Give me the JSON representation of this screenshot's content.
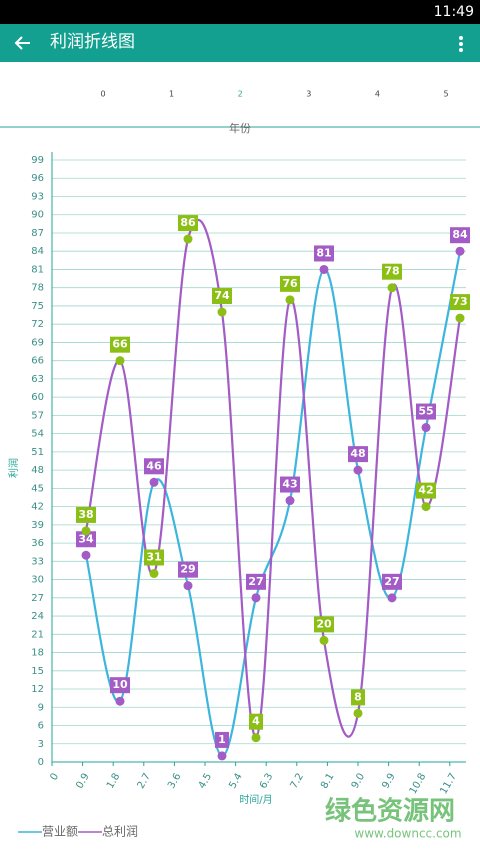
{
  "status_bar": {
    "time": "11:49"
  },
  "app_bar": {
    "title": "利润折线图"
  },
  "chart_data": {
    "type": "line",
    "top_axis": {
      "ticks": [
        0,
        1,
        2,
        3,
        4,
        5
      ],
      "label": "年份"
    },
    "xlabel": "时间/月",
    "ylabel": "利润",
    "x": [
      1,
      2,
      3,
      4,
      5,
      6,
      7,
      8,
      9,
      10,
      11,
      12
    ],
    "xlim": [
      0,
      12
    ],
    "xticks": [
      0,
      0.9,
      1.8,
      2.7,
      3.6,
      4.5,
      5.4,
      6.3,
      7.2,
      8.1,
      {
        "value": 9,
        "label": "9.0"
      },
      9.9,
      10.8,
      11.7
    ],
    "ylim": [
      0,
      99
    ],
    "yticks": [
      0,
      3,
      6,
      9,
      12,
      15,
      18,
      21,
      24,
      27,
      30,
      33,
      36,
      39,
      42,
      45,
      48,
      51,
      54,
      57,
      60,
      63,
      66,
      69,
      72,
      75,
      78,
      81,
      84,
      87,
      90,
      93,
      96,
      99
    ],
    "grid": true,
    "series": [
      {
        "name": "营业额",
        "color": "#3db5dc",
        "point_color": "#a35bc5",
        "values": [
          34,
          10,
          46,
          29,
          1,
          27,
          43,
          81,
          48,
          27,
          55,
          84
        ]
      },
      {
        "name": "总利润",
        "color": "#a35bc5",
        "point_color": "#8cbf16",
        "values": [
          38,
          66,
          31,
          86,
          74,
          4,
          76,
          20,
          8,
          78,
          42,
          73
        ]
      }
    ]
  },
  "watermark": {
    "title": "绿色资源网",
    "url": "www.downcc.com"
  }
}
